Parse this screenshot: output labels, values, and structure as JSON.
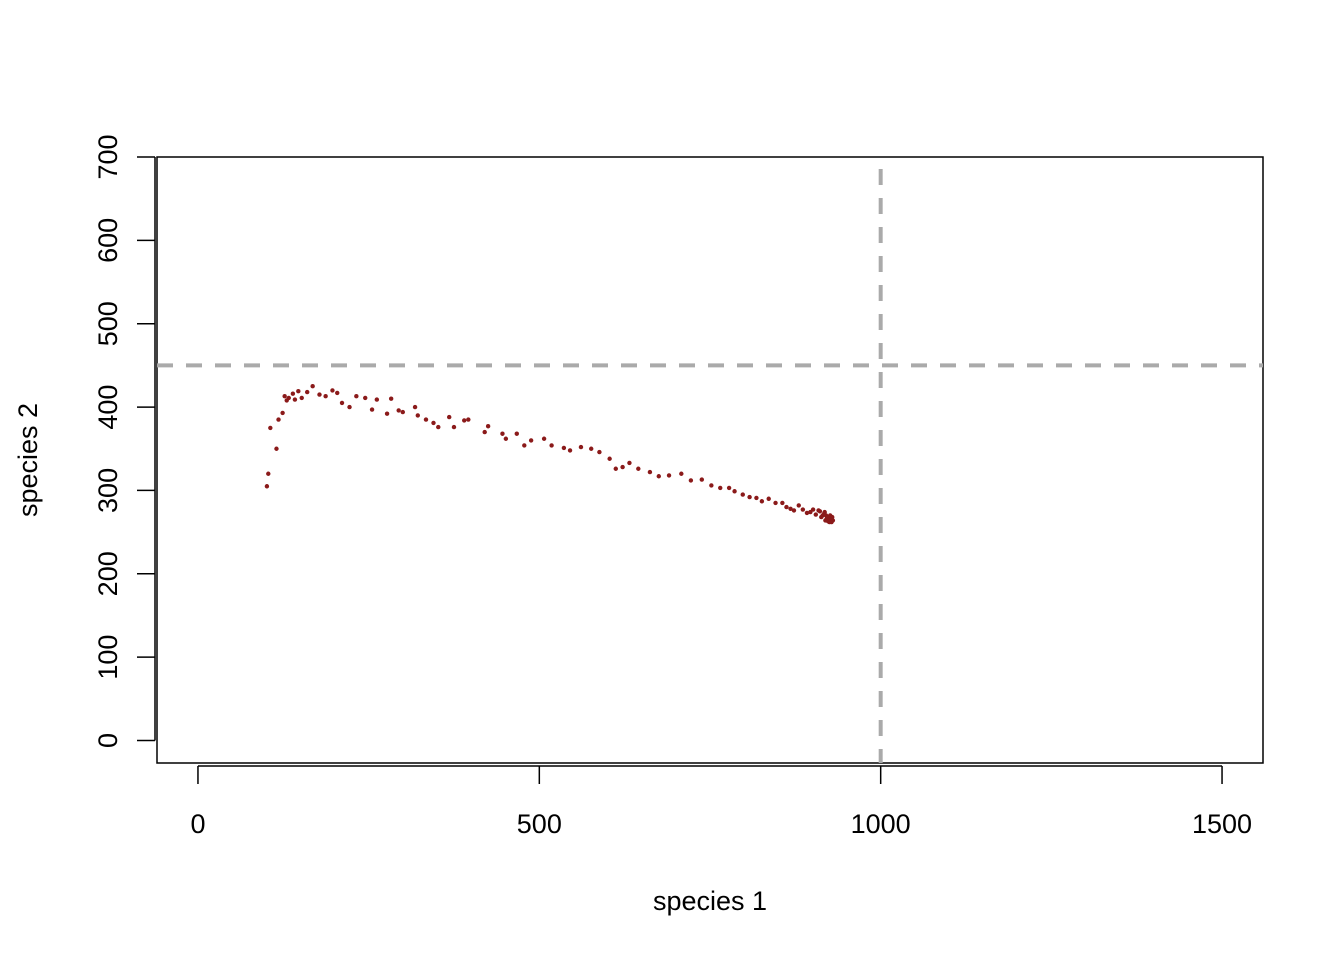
{
  "chart_data": {
    "type": "scatter",
    "title": "",
    "xlabel": "species 1",
    "ylabel": "species 2",
    "xlim": [
      -60,
      1560
    ],
    "ylim": [
      -27,
      700
    ],
    "xticks": [
      0,
      500,
      1000,
      1500
    ],
    "yticks": [
      0,
      100,
      200,
      300,
      400,
      500,
      600,
      700
    ],
    "grid": false,
    "legend": "none",
    "point_color": "#8B1A1A",
    "reference_line_color": "#AAAAAA",
    "reference_lines": {
      "vertical_x": 1000,
      "horizontal_y": 450
    },
    "series": [
      {
        "x": [
          101,
          103,
          106,
          115,
          118,
          124,
          127,
          130,
          133,
          139,
          142,
          147,
          152,
          160,
          168,
          178,
          187,
          197,
          204,
          211,
          222,
          232,
          245,
          255,
          262,
          277,
          283,
          294,
          300,
          318,
          322,
          334,
          345,
          352,
          368,
          375,
          390,
          396,
          420,
          425,
          446,
          451,
          467,
          478,
          488,
          507,
          518,
          536,
          545,
          561,
          576,
          588,
          603,
          612,
          622,
          632,
          645,
          662,
          675,
          690,
          708,
          722,
          738,
          752,
          765,
          778,
          786,
          798,
          808,
          818,
          826,
          836,
          846,
          856,
          862,
          868,
          873,
          880,
          886,
          892,
          897,
          901,
          905,
          909,
          911,
          913,
          915,
          917,
          918,
          919,
          920,
          921,
          922,
          923,
          924,
          925,
          926,
          927,
          928,
          929,
          930
        ],
        "y": [
          305,
          320,
          375,
          350,
          385,
          393,
          413,
          408,
          411,
          416,
          409,
          419,
          411,
          418,
          425,
          415,
          413,
          420,
          417,
          405,
          400,
          413,
          411,
          397,
          409,
          392,
          410,
          396,
          394,
          400,
          390,
          385,
          381,
          376,
          388,
          376,
          384,
          385,
          370,
          377,
          368,
          362,
          368,
          354,
          360,
          362,
          354,
          351,
          348,
          352,
          350,
          346,
          338,
          326,
          328,
          333,
          326,
          322,
          317,
          318,
          320,
          312,
          313,
          306,
          303,
          303,
          299,
          295,
          292,
          291,
          287,
          290,
          285,
          285,
          280,
          278,
          276,
          282,
          277,
          273,
          274,
          277,
          271,
          276,
          275,
          268,
          270,
          272,
          274,
          264,
          270,
          266,
          268,
          263,
          268,
          262,
          270,
          265,
          262,
          268,
          264
        ]
      }
    ]
  }
}
